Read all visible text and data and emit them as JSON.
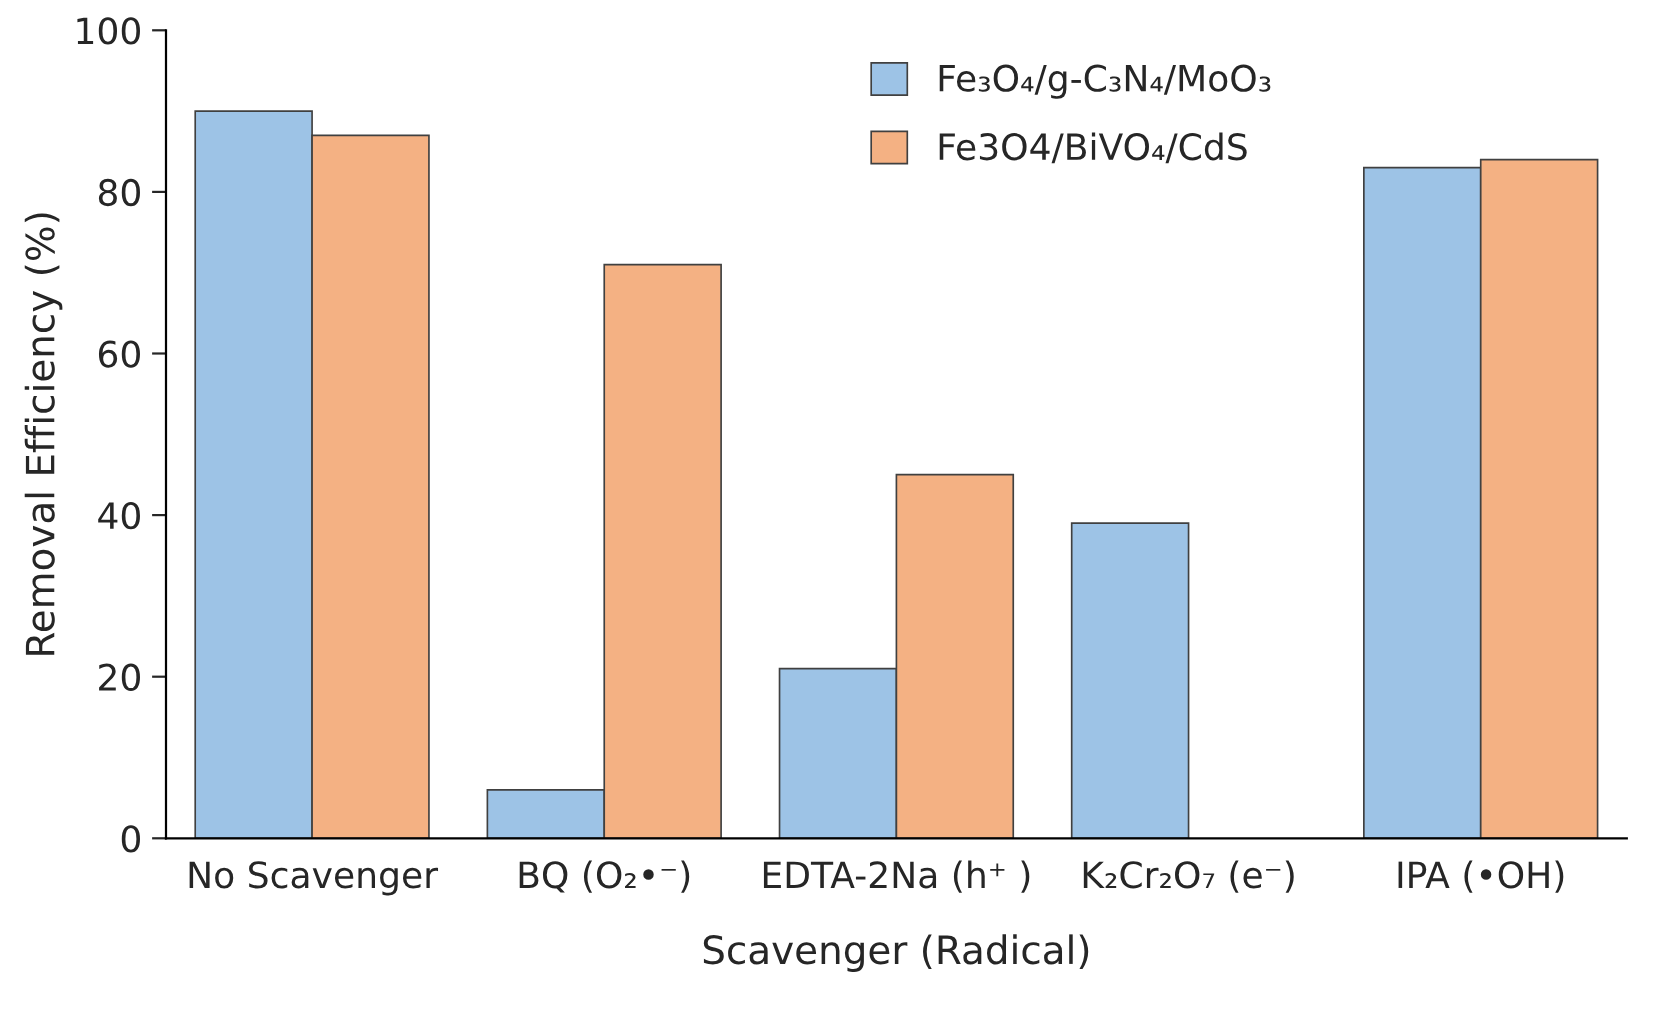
{
  "chart_data": {
    "type": "bar",
    "xlabel": "Scavenger (Radical)",
    "ylabel": "Removal Efficiency (%)",
    "categories": [
      "No Scavenger",
      "BQ (O₂•⁻)",
      "EDTA-2Na (h⁺ )",
      "K₂Cr₂O₇ (e⁻)",
      "IPA (•OH)"
    ],
    "series": [
      {
        "name": "Fe₃O₄/g-C₃N₄/MoO₃",
        "color": "#9dc3e6",
        "values": [
          90,
          6,
          21,
          39,
          83
        ]
      },
      {
        "name": "Fe3O4/BiVO₄/CdS",
        "color": "#f4b183",
        "values": [
          87,
          71,
          45,
          null,
          84
        ]
      }
    ],
    "ylim": [
      0,
      100
    ],
    "yticks": [
      0,
      20,
      40,
      60,
      80,
      100
    ],
    "grid": false,
    "legend": "top"
  }
}
